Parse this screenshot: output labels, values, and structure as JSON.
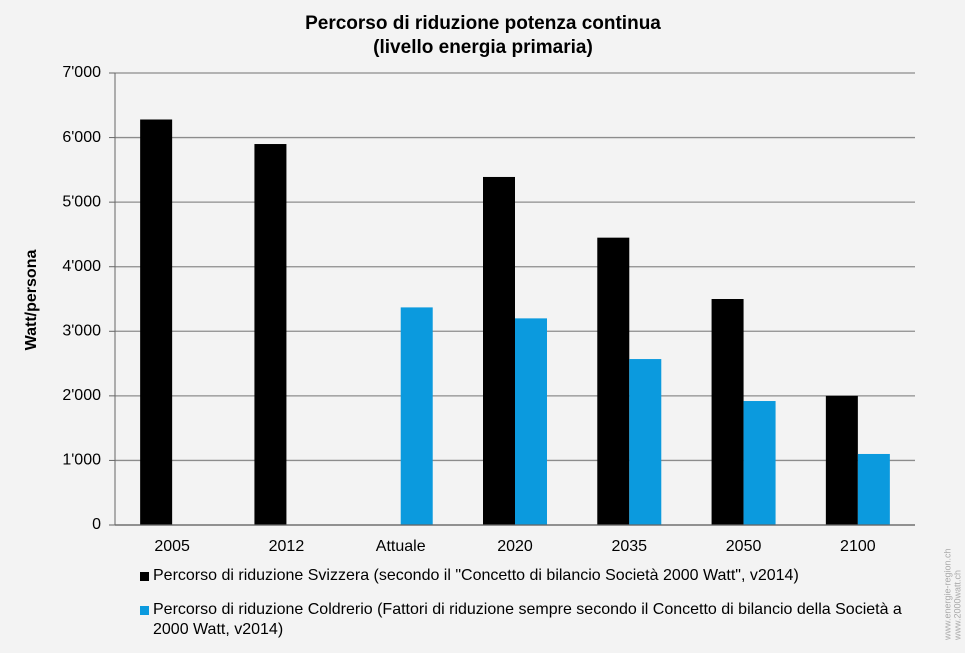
{
  "chart_data": {
    "type": "bar",
    "title": [
      "Percorso di riduzione potenza continua",
      "(livello energia primaria)"
    ],
    "ylabel": "Watt/persona",
    "watermark": [
      "www.energie-region.ch",
      "www.2000watt.ch"
    ],
    "categories": [
      "2005",
      "2012",
      "Attuale",
      "2020",
      "2035",
      "2050",
      "2100"
    ],
    "series": [
      {
        "name": "Percorso di riduzione Svizzera (secondo il \"Concetto di bilancio Società 2000 Watt\", v2014)",
        "color": "#000000",
        "values": [
          6280,
          5900,
          null,
          5390,
          4450,
          3500,
          2000
        ]
      },
      {
        "name": "Percorso di riduzione Coldrerio (Fattori di riduzione sempre secondo il Concetto di bilancio della Società a 2000 Watt, v2014)",
        "color": "#0b9ade",
        "values": [
          null,
          null,
          3370,
          3200,
          2570,
          1920,
          1100
        ]
      }
    ],
    "ylim": [
      0,
      7000
    ],
    "yticks": [
      0,
      {
        "value": 1000,
        "label": "1'000"
      },
      {
        "value": 2000,
        "label": "2'000"
      },
      {
        "value": 3000,
        "label": "3'000"
      },
      {
        "value": 4000,
        "label": "4'000"
      },
      {
        "value": 5000,
        "label": "5'000"
      },
      {
        "value": 6000,
        "label": "6'000"
      },
      {
        "value": 7000,
        "label": "7'000"
      }
    ],
    "grid": true
  }
}
